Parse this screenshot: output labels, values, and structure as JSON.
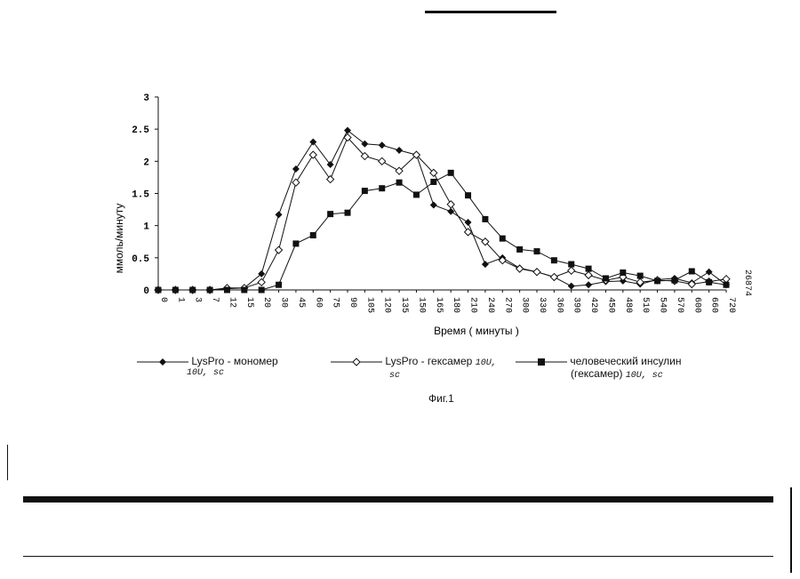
{
  "figure": {
    "caption": "Фиг.1",
    "side_number": "26874"
  },
  "legend": {
    "items": [
      {
        "label_main": "LysPro - мономер",
        "label_sub": "10U, sc"
      },
      {
        "label_main": "LysPro - гексамер",
        "label_sub_inline": "10U,",
        "label_sub": "sc"
      },
      {
        "label_main": "человеческий инсулин",
        "label_main2": "(гексамер)",
        "label_sub": "10U, sc"
      }
    ]
  },
  "chart_data": {
    "type": "line",
    "xlabel": "Время ( минуты )",
    "ylabel": "ммоль/минуту",
    "ylim": [
      0,
      3
    ],
    "yticks": [
      "0",
      "0.5",
      "1",
      "1.5",
      "2",
      "2.5",
      "3"
    ],
    "categories": [
      "0",
      "1",
      "3",
      "7",
      "12",
      "15",
      "20",
      "30",
      "45",
      "60",
      "75",
      "90",
      "105",
      "120",
      "135",
      "150",
      "165",
      "180",
      "210",
      "240",
      "270",
      "300",
      "330",
      "360",
      "390",
      "420",
      "450",
      "480",
      "510",
      "540",
      "570",
      "600",
      "660",
      "720"
    ],
    "series": [
      {
        "name": "LysPro - мономер",
        "marker": "filled-diamond",
        "values": [
          0,
          0,
          0,
          0,
          0.02,
          0.03,
          0.25,
          1.17,
          1.88,
          2.3,
          1.95,
          2.48,
          2.27,
          2.25,
          2.17,
          2.1,
          1.32,
          1.22,
          1.05,
          0.4,
          0.5,
          0.34,
          0.28,
          0.2,
          0.06,
          0.08,
          0.13,
          0.14,
          0.09,
          0.16,
          0.18,
          0.11,
          0.28,
          0.08
        ]
      },
      {
        "name": "LysPro - гексамер",
        "marker": "open-diamond",
        "values": [
          0,
          0,
          0,
          0,
          0.03,
          0.03,
          0.12,
          0.62,
          1.67,
          2.1,
          1.72,
          2.37,
          2.08,
          2.0,
          1.85,
          2.1,
          1.82,
          1.33,
          0.9,
          0.75,
          0.46,
          0.33,
          0.28,
          0.2,
          0.3,
          0.23,
          0.15,
          0.2,
          0.12,
          0.15,
          0.14,
          0.09,
          0.13,
          0.17
        ]
      },
      {
        "name": "человеческий инсулин (гексамер)",
        "marker": "filled-square",
        "values": [
          0,
          0,
          0,
          0,
          0,
          0,
          0,
          0.08,
          0.72,
          0.85,
          1.18,
          1.2,
          1.54,
          1.58,
          1.67,
          1.48,
          1.68,
          1.82,
          1.47,
          1.1,
          0.8,
          0.63,
          0.6,
          0.46,
          0.4,
          0.33,
          0.18,
          0.27,
          0.22,
          0.14,
          0.15,
          0.29,
          0.12,
          0.08
        ]
      }
    ]
  }
}
